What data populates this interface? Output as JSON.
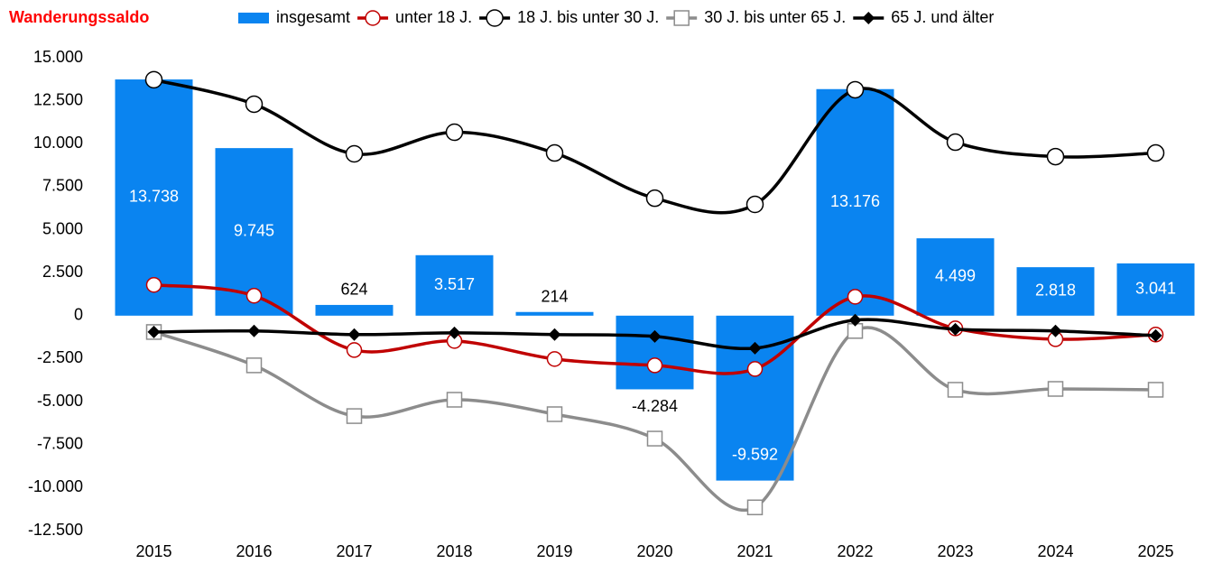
{
  "chart_data": {
    "type": "bar_line",
    "title": "Wanderungssaldo",
    "categories": [
      "2015",
      "2016",
      "2017",
      "2018",
      "2019",
      "2020",
      "2021",
      "2022",
      "2023",
      "2024",
      "2025"
    ],
    "ylim": [
      -12500,
      15000
    ],
    "yticks": [
      {
        "value": -12500,
        "label": "-12.500"
      },
      {
        "value": -10000,
        "label": "-10.000"
      },
      {
        "value": -7500,
        "label": "-7.500"
      },
      {
        "value": -5000,
        "label": "-5.000"
      },
      {
        "value": -2500,
        "label": "-2.500"
      },
      0,
      {
        "value": 2500,
        "label": "2.500"
      },
      {
        "value": 5000,
        "label": "5.000"
      },
      {
        "value": 7500,
        "label": "7.500"
      },
      {
        "value": 10000,
        "label": "10.000"
      },
      {
        "value": 12500,
        "label": "12.500"
      },
      {
        "value": 15000,
        "label": "15.000"
      }
    ],
    "series": [
      {
        "name": "insgesamt",
        "type": "bar",
        "color": "#0a84f0",
        "values": [
          13738,
          9745,
          624,
          3517,
          214,
          -4284,
          -9592,
          13176,
          4499,
          2818,
          3041
        ],
        "value_labels": [
          "13.738",
          "9.745",
          "624",
          "3.517",
          "214",
          "-4.284",
          "-9.592",
          "13.176",
          "4.499",
          "2.818",
          "3.041"
        ]
      },
      {
        "name": "unter 18 J.",
        "type": "line",
        "marker": "circle",
        "color": "#c00000",
        "values": [
          1790,
          1160,
          -2000,
          -1470,
          -2520,
          -2890,
          -3100,
          1100,
          -740,
          -1370,
          -1100
        ]
      },
      {
        "name": "18 J. bis unter 30 J.",
        "type": "line",
        "marker": "circle",
        "color": "#000000",
        "values": [
          13720,
          12300,
          9410,
          10670,
          9460,
          6830,
          6470,
          13140,
          10090,
          9250,
          9460
        ]
      },
      {
        "name": "30 J. bis unter 65 J.",
        "type": "line",
        "marker": "square",
        "color": "#8c8c8c",
        "values": [
          -950,
          -2890,
          -5840,
          -4890,
          -5730,
          -7150,
          -11150,
          -890,
          -4310,
          -4260,
          -4310
        ]
      },
      {
        "name": "65 J. und älter",
        "type": "line",
        "marker": "diamond",
        "color": "#000000",
        "values": [
          -950,
          -890,
          -1100,
          -1000,
          -1100,
          -1210,
          -1890,
          -260,
          -790,
          -890,
          -1160
        ]
      }
    ]
  }
}
